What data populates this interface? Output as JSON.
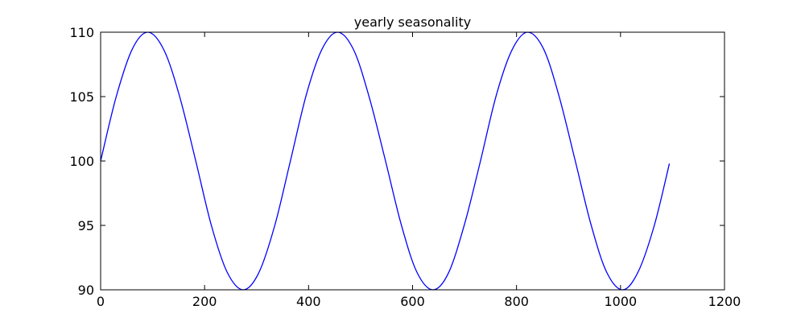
{
  "chart_data": {
    "type": "line",
    "title": "yearly seasonality",
    "xlabel": "",
    "ylabel": "",
    "xlim": [
      0,
      1200
    ],
    "ylim": [
      90,
      110
    ],
    "xticks": [
      0,
      200,
      400,
      600,
      800,
      1000,
      1200
    ],
    "yticks": [
      90,
      95,
      100,
      105,
      110
    ],
    "xtick_labels": [
      "0",
      "200",
      "400",
      "600",
      "800",
      "1000",
      "1200"
    ],
    "ytick_labels": [
      "90",
      "95",
      "100",
      "105",
      "110"
    ],
    "grid": false,
    "series": [
      {
        "color": "#0000ff",
        "x": [
          0,
          30,
          61,
          91,
          122,
          152,
          183,
          213,
          243,
          274,
          304,
          335,
          365,
          396,
          426,
          456,
          487,
          517,
          548,
          578,
          608,
          639,
          669,
          700,
          730,
          761,
          791,
          821,
          852,
          882,
          913,
          943,
          973,
          1004,
          1034,
          1065,
          1094
        ],
        "y": [
          100,
          105,
          108.7,
          110,
          108.6,
          105,
          100,
          95,
          91.4,
          90,
          91.3,
          95,
          100,
          105.2,
          108.7,
          110,
          108.6,
          104.9,
          100,
          95.1,
          91.4,
          90,
          91.3,
          95.1,
          99.9,
          105.1,
          108.6,
          110,
          108.7,
          105,
          100,
          95.1,
          91.4,
          90,
          91.4,
          95,
          99.8
        ]
      }
    ]
  }
}
